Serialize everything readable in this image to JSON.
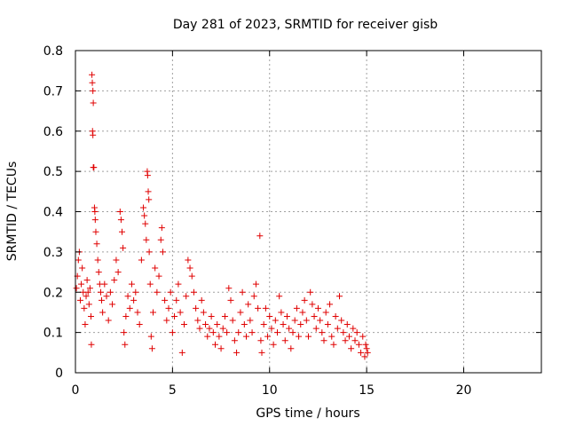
{
  "chart_data": {
    "type": "scatter",
    "title": "Day 281 of 2023, SRMTID for receiver gisb",
    "xlabel": "GPS time / hours",
    "ylabel": "SRMTID / TECUs",
    "xlim": [
      0,
      24
    ],
    "ylim": [
      0,
      0.8
    ],
    "xticks": [
      0,
      5,
      10,
      15,
      20
    ],
    "xtick_labels": [
      "0",
      "5",
      "10",
      "15",
      "20"
    ],
    "yticks": [
      0,
      0.1,
      0.2,
      0.3,
      0.4,
      0.5,
      0.6,
      0.7,
      0.8
    ],
    "ytick_labels": [
      "0",
      "0.1",
      "0.2",
      "0.3",
      "0.4",
      "0.5",
      "0.6",
      "0.7",
      "0.8"
    ],
    "grid": true,
    "marker": "+",
    "color": "#e00000",
    "series": [
      {
        "name": "SRMTID",
        "points": [
          [
            0.05,
            0.21
          ],
          [
            0.1,
            0.24
          ],
          [
            0.15,
            0.28
          ],
          [
            0.2,
            0.3
          ],
          [
            0.25,
            0.18
          ],
          [
            0.3,
            0.22
          ],
          [
            0.35,
            0.26
          ],
          [
            0.4,
            0.2
          ],
          [
            0.45,
            0.16
          ],
          [
            0.5,
            0.12
          ],
          [
            0.55,
            0.19
          ],
          [
            0.6,
            0.23
          ],
          [
            0.65,
            0.2
          ],
          [
            0.7,
            0.17
          ],
          [
            0.75,
            0.21
          ],
          [
            0.8,
            0.14
          ],
          [
            0.82,
            0.07
          ],
          [
            0.85,
            0.74
          ],
          [
            0.87,
            0.72
          ],
          [
            0.9,
            0.7
          ],
          [
            0.92,
            0.67
          ],
          [
            0.88,
            0.6
          ],
          [
            0.9,
            0.59
          ],
          [
            0.92,
            0.51
          ],
          [
            0.95,
            0.51
          ],
          [
            0.98,
            0.41
          ],
          [
            1.0,
            0.4
          ],
          [
            1.02,
            0.38
          ],
          [
            1.05,
            0.35
          ],
          [
            1.1,
            0.32
          ],
          [
            1.15,
            0.28
          ],
          [
            1.2,
            0.25
          ],
          [
            1.25,
            0.22
          ],
          [
            1.3,
            0.2
          ],
          [
            1.35,
            0.18
          ],
          [
            1.4,
            0.15
          ],
          [
            1.5,
            0.22
          ],
          [
            1.6,
            0.19
          ],
          [
            1.7,
            0.13
          ],
          [
            1.8,
            0.2
          ],
          [
            1.9,
            0.17
          ],
          [
            2.0,
            0.23
          ],
          [
            2.1,
            0.28
          ],
          [
            2.2,
            0.25
          ],
          [
            2.3,
            0.4
          ],
          [
            2.35,
            0.38
          ],
          [
            2.4,
            0.35
          ],
          [
            2.45,
            0.31
          ],
          [
            2.5,
            0.1
          ],
          [
            2.55,
            0.07
          ],
          [
            2.6,
            0.14
          ],
          [
            2.7,
            0.19
          ],
          [
            2.8,
            0.16
          ],
          [
            2.9,
            0.22
          ],
          [
            3.0,
            0.18
          ],
          [
            3.1,
            0.2
          ],
          [
            3.2,
            0.15
          ],
          [
            3.3,
            0.12
          ],
          [
            3.4,
            0.28
          ],
          [
            3.5,
            0.41
          ],
          [
            3.55,
            0.39
          ],
          [
            3.6,
            0.37
          ],
          [
            3.65,
            0.33
          ],
          [
            3.7,
            0.5
          ],
          [
            3.72,
            0.49
          ],
          [
            3.75,
            0.45
          ],
          [
            3.78,
            0.43
          ],
          [
            3.8,
            0.3
          ],
          [
            3.85,
            0.22
          ],
          [
            3.9,
            0.09
          ],
          [
            3.95,
            0.06
          ],
          [
            4.0,
            0.15
          ],
          [
            4.1,
            0.26
          ],
          [
            4.2,
            0.2
          ],
          [
            4.3,
            0.24
          ],
          [
            4.4,
            0.33
          ],
          [
            4.45,
            0.36
          ],
          [
            4.5,
            0.3
          ],
          [
            4.6,
            0.18
          ],
          [
            4.7,
            0.13
          ],
          [
            4.8,
            0.16
          ],
          [
            4.9,
            0.2
          ],
          [
            5.0,
            0.1
          ],
          [
            5.1,
            0.14
          ],
          [
            5.2,
            0.18
          ],
          [
            5.3,
            0.22
          ],
          [
            5.4,
            0.15
          ],
          [
            5.5,
            0.05
          ],
          [
            5.6,
            0.12
          ],
          [
            5.7,
            0.19
          ],
          [
            5.8,
            0.28
          ],
          [
            5.9,
            0.26
          ],
          [
            6.0,
            0.24
          ],
          [
            6.1,
            0.2
          ],
          [
            6.2,
            0.16
          ],
          [
            6.3,
            0.13
          ],
          [
            6.4,
            0.11
          ],
          [
            6.5,
            0.18
          ],
          [
            6.6,
            0.15
          ],
          [
            6.7,
            0.12
          ],
          [
            6.8,
            0.09
          ],
          [
            6.9,
            0.11
          ],
          [
            7.0,
            0.14
          ],
          [
            7.1,
            0.1
          ],
          [
            7.2,
            0.07
          ],
          [
            7.3,
            0.12
          ],
          [
            7.4,
            0.09
          ],
          [
            7.5,
            0.06
          ],
          [
            7.6,
            0.11
          ],
          [
            7.7,
            0.14
          ],
          [
            7.8,
            0.1
          ],
          [
            7.9,
            0.21
          ],
          [
            8.0,
            0.18
          ],
          [
            8.1,
            0.13
          ],
          [
            8.2,
            0.08
          ],
          [
            8.3,
            0.05
          ],
          [
            8.4,
            0.1
          ],
          [
            8.5,
            0.15
          ],
          [
            8.6,
            0.2
          ],
          [
            8.7,
            0.12
          ],
          [
            8.8,
            0.09
          ],
          [
            8.9,
            0.17
          ],
          [
            9.0,
            0.13
          ],
          [
            9.1,
            0.1
          ],
          [
            9.2,
            0.19
          ],
          [
            9.3,
            0.22
          ],
          [
            9.4,
            0.16
          ],
          [
            9.5,
            0.34
          ],
          [
            9.55,
            0.08
          ],
          [
            9.6,
            0.05
          ],
          [
            9.7,
            0.12
          ],
          [
            9.8,
            0.16
          ],
          [
            9.9,
            0.09
          ],
          [
            10.0,
            0.14
          ],
          [
            10.1,
            0.11
          ],
          [
            10.2,
            0.07
          ],
          [
            10.3,
            0.13
          ],
          [
            10.4,
            0.1
          ],
          [
            10.5,
            0.19
          ],
          [
            10.6,
            0.15
          ],
          [
            10.7,
            0.12
          ],
          [
            10.8,
            0.08
          ],
          [
            10.9,
            0.14
          ],
          [
            11.0,
            0.11
          ],
          [
            11.1,
            0.06
          ],
          [
            11.2,
            0.1
          ],
          [
            11.3,
            0.13
          ],
          [
            11.4,
            0.16
          ],
          [
            11.5,
            0.09
          ],
          [
            11.6,
            0.12
          ],
          [
            11.7,
            0.15
          ],
          [
            11.8,
            0.18
          ],
          [
            11.9,
            0.13
          ],
          [
            12.0,
            0.09
          ],
          [
            12.1,
            0.2
          ],
          [
            12.2,
            0.17
          ],
          [
            12.3,
            0.14
          ],
          [
            12.4,
            0.11
          ],
          [
            12.5,
            0.16
          ],
          [
            12.6,
            0.13
          ],
          [
            12.7,
            0.1
          ],
          [
            12.8,
            0.08
          ],
          [
            12.9,
            0.15
          ],
          [
            13.0,
            0.12
          ],
          [
            13.1,
            0.17
          ],
          [
            13.2,
            0.09
          ],
          [
            13.3,
            0.07
          ],
          [
            13.4,
            0.14
          ],
          [
            13.5,
            0.11
          ],
          [
            13.6,
            0.19
          ],
          [
            13.7,
            0.13
          ],
          [
            13.8,
            0.1
          ],
          [
            13.9,
            0.08
          ],
          [
            14.0,
            0.12
          ],
          [
            14.1,
            0.09
          ],
          [
            14.2,
            0.06
          ],
          [
            14.3,
            0.11
          ],
          [
            14.4,
            0.08
          ],
          [
            14.5,
            0.1
          ],
          [
            14.6,
            0.07
          ],
          [
            14.7,
            0.05
          ],
          [
            14.8,
            0.09
          ],
          [
            14.9,
            0.04
          ],
          [
            14.95,
            0.07
          ],
          [
            15.0,
            0.06
          ],
          [
            15.05,
            0.05
          ]
        ]
      }
    ]
  }
}
